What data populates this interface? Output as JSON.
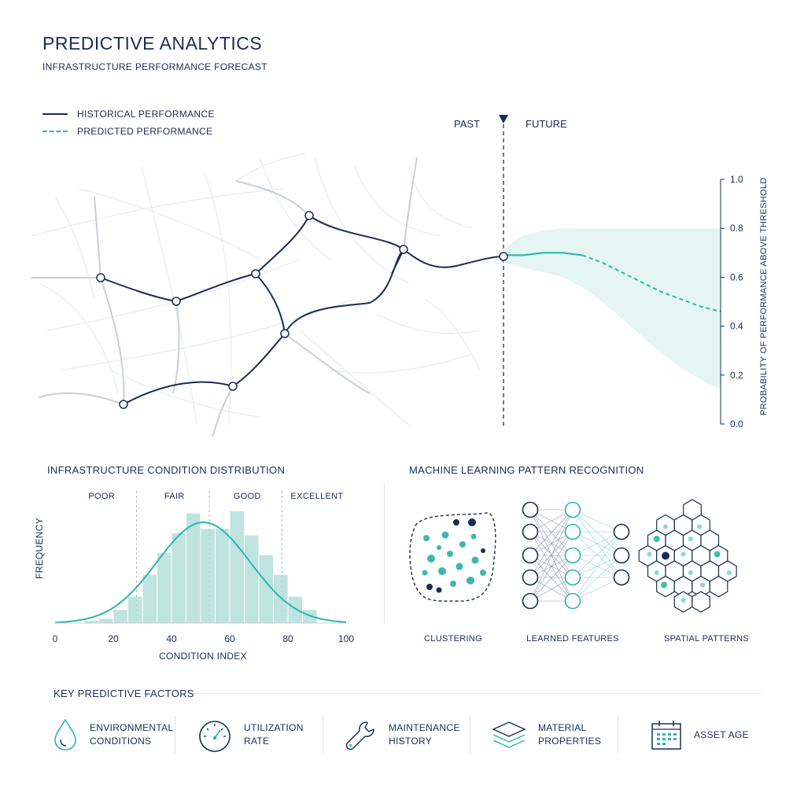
{
  "header": {
    "title": "PREDICTIVE ANALYTICS",
    "subtitle": "INFRASTRUCTURE PERFORMANCE FORECAST"
  },
  "legend": {
    "historical": "HISTORICAL PERFORMANCE",
    "predicted": "PREDICTED PERFORMANCE"
  },
  "timeline": {
    "past_label": "PAST",
    "future_label": "FUTURE"
  },
  "colors": {
    "navy": "#1b2d55",
    "teal": "#2bb8aa",
    "band": "#dff3f1",
    "bars": "#a9d9d4"
  },
  "chart_data": [
    {
      "type": "line",
      "name": "forecast",
      "ylabel": "PROBABILITY OF PERFORMANCE ABOVE THRESHOLD",
      "ylim": [
        0,
        1
      ],
      "yticks": [
        "0.0",
        "0.2",
        "0.4",
        "0.6",
        "0.8",
        "1.0"
      ],
      "series": [
        {
          "name": "PREDICTED PERFORMANCE",
          "values": [
            0.69,
            0.69,
            0.7,
            0.7,
            0.69,
            0.66,
            0.62,
            0.58,
            0.54,
            0.51,
            0.48,
            0.46
          ]
        }
      ],
      "band_upper": [
        0.72,
        0.77,
        0.79,
        0.8,
        0.8,
        0.8,
        0.8,
        0.8,
        0.8,
        0.8,
        0.8,
        0.8
      ],
      "band_lower": [
        0.66,
        0.64,
        0.62,
        0.6,
        0.56,
        0.5,
        0.43,
        0.36,
        0.29,
        0.23,
        0.18,
        0.14
      ]
    },
    {
      "type": "bar",
      "title": "INFRASTRUCTURE CONDITION DISTRIBUTION",
      "xlabel": "CONDITION INDEX",
      "ylabel": "FREQUENCY",
      "xlim": [
        0,
        100
      ],
      "xticks": [
        "0",
        "20",
        "40",
        "60",
        "80",
        "100"
      ],
      "bin_width": 5,
      "bin_starts": [
        10,
        15,
        20,
        25,
        30,
        35,
        40,
        45,
        50,
        55,
        60,
        65,
        70,
        75,
        80,
        85
      ],
      "values": [
        2,
        4,
        12,
        24,
        44,
        64,
        82,
        100,
        86,
        86,
        102,
        80,
        62,
        44,
        24,
        12
      ],
      "curve": {
        "type": "normal",
        "mean": 51,
        "sd": 16,
        "peak": 92
      },
      "zones": [
        "POOR",
        "FAIR",
        "GOOD",
        "EXCELLENT"
      ]
    }
  ],
  "ml": {
    "title": "MACHINE LEARNING PATTERN RECOGNITION",
    "captions": [
      "CLUSTERING",
      "LEARNED FEATURES",
      "SPATIAL PATTERNS"
    ]
  },
  "factors": {
    "title": "KEY PREDICTIVE FACTORS",
    "items": [
      {
        "label": "ENVIRONMENTAL\nCONDITIONS",
        "icon": "water-drop-icon"
      },
      {
        "label": "UTILIZATION\nRATE",
        "icon": "gauge-icon"
      },
      {
        "label": "MAINTENANCE\nHISTORY",
        "icon": "wrench-icon"
      },
      {
        "label": "MATERIAL\nPROPERTIES",
        "icon": "layers-icon"
      },
      {
        "label": "ASSET AGE",
        "icon": "calendar-icon"
      }
    ]
  }
}
